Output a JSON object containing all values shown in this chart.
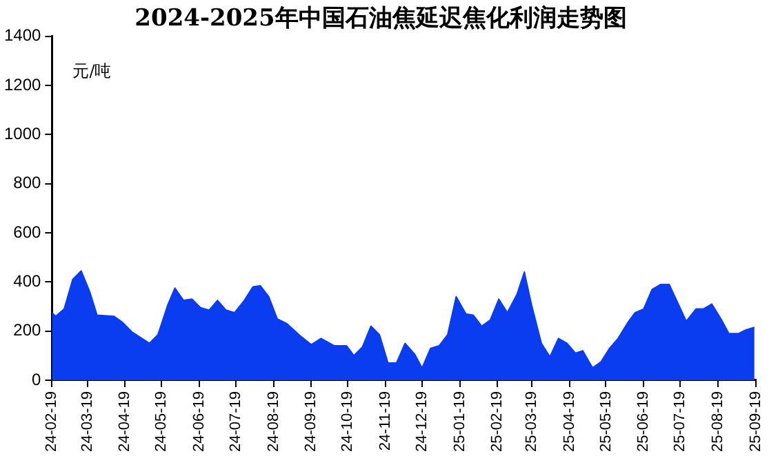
{
  "chart_data": {
    "type": "area",
    "title": "2024-2025年中国石油焦延迟焦化利润走势图",
    "ylabel": "元/吨",
    "x": [
      "2024-02-19",
      "2024-02-22",
      "2024-02-29",
      "2024-03-07",
      "2024-03-14",
      "2024-03-21",
      "2024-03-27",
      "2024-04-10",
      "2024-04-17",
      "2024-04-25",
      "2024-05-09",
      "2024-05-16",
      "2024-05-24",
      "2024-05-30",
      "2024-06-06",
      "2024-06-13",
      "2024-06-20",
      "2024-06-27",
      "2024-07-04",
      "2024-07-11",
      "2024-07-18",
      "2024-07-26",
      "2024-08-02",
      "2024-08-08",
      "2024-08-15",
      "2024-08-22",
      "2024-08-30",
      "2024-09-10",
      "2024-09-19",
      "2024-09-27",
      "2024-10-08",
      "2024-10-18",
      "2024-10-24",
      "2024-10-31",
      "2024-11-07",
      "2024-11-14",
      "2024-11-21",
      "2024-11-28",
      "2024-12-05",
      "2024-12-13",
      "2024-12-19",
      "2024-12-26",
      "2025-01-02",
      "2025-01-09",
      "2025-01-16",
      "2025-01-24",
      "2025-01-30",
      "2025-02-06",
      "2025-02-13",
      "2025-02-20",
      "2025-02-27",
      "2025-03-07",
      "2025-03-13",
      "2025-03-19",
      "2025-03-27",
      "2025-04-03",
      "2025-04-10",
      "2025-04-17",
      "2025-04-24",
      "2025-04-30",
      "2025-05-08",
      "2025-05-15",
      "2025-05-22",
      "2025-05-29",
      "2025-06-06",
      "2025-06-12",
      "2025-06-19",
      "2025-06-26",
      "2025-07-03",
      "2025-07-10",
      "2025-07-17",
      "2025-07-24",
      "2025-08-01",
      "2025-08-07",
      "2025-08-14",
      "2025-08-22",
      "2025-08-28",
      "2025-09-05",
      "2025-09-11",
      "2025-09-18"
    ],
    "series": [
      {
        "color": "#0a3cf0",
        "values": [
          275,
          260,
          290,
          410,
          445,
          360,
          265,
          260,
          235,
          195,
          150,
          185,
          305,
          375,
          325,
          330,
          295,
          285,
          325,
          285,
          275,
          325,
          380,
          385,
          340,
          250,
          230,
          180,
          145,
          170,
          140,
          140,
          100,
          135,
          220,
          185,
          70,
          70,
          150,
          105,
          50,
          130,
          140,
          185,
          340,
          270,
          265,
          220,
          245,
          330,
          275,
          350,
          440,
          305,
          150,
          95,
          170,
          150,
          110,
          120,
          50,
          75,
          130,
          170,
          235,
          275,
          290,
          370,
          390,
          390,
          315,
          240,
          290,
          290,
          310,
          245,
          190,
          190,
          205,
          215
        ]
      }
    ],
    "xlim": [
      "2024-02-19",
      "2025-09-19"
    ],
    "xticks": [
      {
        "value": "2024-02-19",
        "label": "24-02-19"
      },
      {
        "value": "2024-03-19",
        "label": "24-03-19"
      },
      {
        "value": "2024-04-19",
        "label": "24-04-19"
      },
      {
        "value": "2024-05-19",
        "label": "24-05-19"
      },
      {
        "value": "2024-06-19",
        "label": "24-06-19"
      },
      {
        "value": "2024-07-19",
        "label": "24-07-19"
      },
      {
        "value": "2024-08-19",
        "label": "24-08-19"
      },
      {
        "value": "2024-09-19",
        "label": "24-09-19"
      },
      {
        "value": "2024-10-19",
        "label": "24-10-19"
      },
      {
        "value": "2024-11-19",
        "label": "24-11-19"
      },
      {
        "value": "2024-12-19",
        "label": "24-12-19"
      },
      {
        "value": "2025-01-19",
        "label": "25-01-19"
      },
      {
        "value": "2025-02-19",
        "label": "25-02-19"
      },
      {
        "value": "2025-03-19",
        "label": "25-03-19"
      },
      {
        "value": "2025-04-19",
        "label": "25-04-19"
      },
      {
        "value": "2025-05-19",
        "label": "25-05-19"
      },
      {
        "value": "2025-06-19",
        "label": "25-06-19"
      },
      {
        "value": "2025-07-19",
        "label": "25-07-19"
      },
      {
        "value": "2025-08-19",
        "label": "25-08-19"
      },
      {
        "value": "2025-09-19",
        "label": "25-09-19"
      }
    ],
    "ylim": [
      0,
      1400
    ],
    "yticks": [
      0,
      200,
      400,
      600,
      800,
      1000,
      1200,
      1400
    ],
    "grid": false,
    "legend": false
  }
}
